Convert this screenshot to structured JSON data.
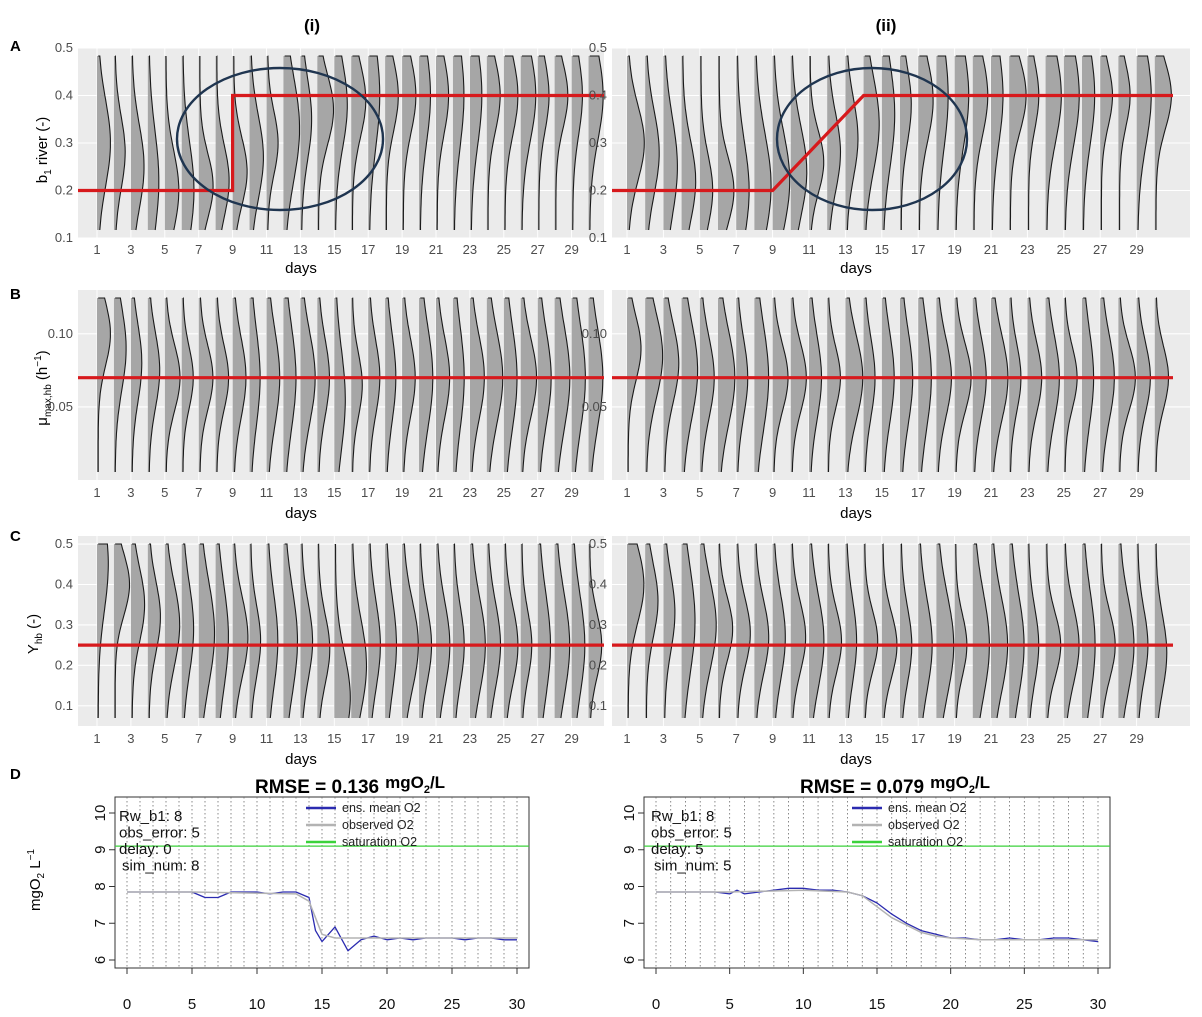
{
  "columns": [
    "(i)",
    "(ii)"
  ],
  "panels": {
    "A": {
      "letter": "A",
      "ylabel_main": "b",
      "ylabel_sub": "1",
      "ylabel_rest": " river (-)",
      "xlabel": "days",
      "yticks": [
        "0.1",
        "0.2",
        "0.3",
        "0.4",
        "0.5"
      ],
      "xticks": [
        "1",
        "3",
        "5",
        "7",
        "9",
        "11",
        "13",
        "15",
        "17",
        "19",
        "21",
        "23",
        "25",
        "27",
        "29"
      ]
    },
    "B": {
      "letter": "B",
      "ylabel_main": "μ",
      "ylabel_sub": "max,hb",
      "ylabel_rest": " (h",
      "ylabel_sup": "−1",
      "ylabel_end": ")",
      "xlabel": "days",
      "yticks": [
        "0.05",
        "0.10"
      ],
      "xticks": [
        "1",
        "3",
        "5",
        "7",
        "9",
        "11",
        "13",
        "15",
        "17",
        "19",
        "21",
        "23",
        "25",
        "27",
        "29"
      ]
    },
    "C": {
      "letter": "C",
      "ylabel_main": "Y",
      "ylabel_sub": "hb",
      "ylabel_rest": " (-)",
      "xlabel": "days",
      "yticks": [
        "0.1",
        "0.2",
        "0.3",
        "0.4",
        "0.5"
      ],
      "xticks": [
        "1",
        "3",
        "5",
        "7",
        "9",
        "11",
        "13",
        "15",
        "17",
        "19",
        "21",
        "23",
        "25",
        "27",
        "29"
      ]
    },
    "D": {
      "letter": "D",
      "ylabel_main": "mgO",
      "ylabel_sub": "2",
      "ylabel_rest": " L",
      "ylabel_sup": "−1",
      "xticks": [
        "0",
        "5",
        "10",
        "15",
        "20",
        "25",
        "30"
      ],
      "yticks_left": [
        "6",
        "7",
        "8",
        "9",
        "10"
      ],
      "yticks_right": [
        "6",
        "7",
        "8",
        "9",
        "10"
      ],
      "legend": [
        "ens. mean O2",
        "observed O2",
        "saturation O2"
      ],
      "left": {
        "rmse_label": "RMSE = 0.136",
        "unit_main": "mgO",
        "unit_sub": "2",
        "unit_rest": "/L",
        "params": [
          "Rw_b1: 8",
          "obs_error: 5",
          "delay: 0",
          "sim_num: 8"
        ]
      },
      "right": {
        "rmse_label": "RMSE = 0.079",
        "unit_main": "mgO",
        "unit_sub": "2",
        "unit_rest": "/L",
        "params": [
          "Rw_b1: 8",
          "obs_error: 5",
          "delay: 5",
          "sim_num: 5"
        ]
      }
    }
  },
  "colors": {
    "panel_bg": "#ebebeb",
    "grid": "#ffffff",
    "violin_fill": "#a6a6a6",
    "violin_line": "#1a1a1a",
    "truth_line": "#d7191c",
    "circle": "#1f3550",
    "ens_mean": "#2b2bb0",
    "observed": "#b3b3b3",
    "saturation": "#3bd23b"
  },
  "chart_data": [
    {
      "type": "violin",
      "panel": "A",
      "column": "(i)",
      "x": [
        1,
        2,
        3,
        4,
        5,
        6,
        7,
        8,
        9,
        10,
        11,
        12,
        13,
        14,
        15,
        16,
        17,
        18,
        19,
        20,
        21,
        22,
        23,
        24,
        25,
        26,
        27,
        28,
        29,
        30
      ],
      "ylim": [
        0.1,
        0.5
      ],
      "ensemble_mode": [
        0.3,
        0.28,
        0.25,
        0.22,
        0.2,
        0.2,
        0.21,
        0.22,
        0.24,
        0.27,
        0.3,
        0.33,
        0.35,
        0.37,
        0.38,
        0.39,
        0.4,
        0.4,
        0.4,
        0.4,
        0.4,
        0.4,
        0.4,
        0.4,
        0.4,
        0.4,
        0.4,
        0.4,
        0.4,
        0.4
      ],
      "truth": {
        "name": "true b1",
        "x": [
          0,
          9,
          9,
          31
        ],
        "y": [
          0.2,
          0.2,
          0.4,
          0.4
        ]
      }
    },
    {
      "type": "violin",
      "panel": "A",
      "column": "(ii)",
      "x": [
        1,
        2,
        3,
        4,
        5,
        6,
        7,
        8,
        9,
        10,
        11,
        12,
        13,
        14,
        15,
        16,
        17,
        18,
        19,
        20,
        21,
        22,
        23,
        24,
        25,
        26,
        27,
        28,
        29,
        30
      ],
      "ylim": [
        0.1,
        0.5
      ],
      "ensemble_mode": [
        0.3,
        0.28,
        0.25,
        0.22,
        0.2,
        0.2,
        0.2,
        0.21,
        0.22,
        0.24,
        0.26,
        0.28,
        0.31,
        0.34,
        0.36,
        0.38,
        0.39,
        0.4,
        0.4,
        0.4,
        0.4,
        0.4,
        0.4,
        0.4,
        0.4,
        0.4,
        0.4,
        0.4,
        0.4,
        0.4
      ],
      "truth": {
        "name": "true b1",
        "x": [
          0,
          9,
          14,
          31
        ],
        "y": [
          0.2,
          0.2,
          0.4,
          0.4
        ]
      }
    },
    {
      "type": "violin",
      "panel": "B",
      "column": "(i)",
      "x": [
        1,
        2,
        3,
        4,
        5,
        6,
        7,
        8,
        9,
        10,
        11,
        12,
        13,
        14,
        15,
        16,
        17,
        18,
        19,
        20,
        21,
        22,
        23,
        24,
        25,
        26,
        27,
        28,
        29,
        30
      ],
      "ylim": [
        0.0,
        0.13
      ],
      "ensemble_mode": [
        0.1,
        0.09,
        0.08,
        0.075,
        0.07,
        0.07,
        0.07,
        0.07,
        0.07,
        0.07,
        0.07,
        0.07,
        0.07,
        0.07,
        0.055,
        0.065,
        0.07,
        0.07,
        0.07,
        0.07,
        0.07,
        0.07,
        0.07,
        0.07,
        0.07,
        0.07,
        0.07,
        0.07,
        0.07,
        0.07
      ],
      "truth": {
        "name": "true mu",
        "x": [
          0,
          31
        ],
        "y": [
          0.07,
          0.07
        ]
      }
    },
    {
      "type": "violin",
      "panel": "B",
      "column": "(ii)",
      "x": [
        1,
        2,
        3,
        4,
        5,
        6,
        7,
        8,
        9,
        10,
        11,
        12,
        13,
        14,
        15,
        16,
        17,
        18,
        19,
        20,
        21,
        22,
        23,
        24,
        25,
        26,
        27,
        28,
        29,
        30
      ],
      "ylim": [
        0.0,
        0.13
      ],
      "ensemble_mode": [
        0.09,
        0.085,
        0.08,
        0.075,
        0.07,
        0.07,
        0.07,
        0.07,
        0.07,
        0.07,
        0.07,
        0.07,
        0.07,
        0.07,
        0.07,
        0.07,
        0.07,
        0.07,
        0.07,
        0.07,
        0.07,
        0.07,
        0.07,
        0.07,
        0.07,
        0.07,
        0.07,
        0.07,
        0.07,
        0.07
      ],
      "truth": {
        "name": "true mu",
        "x": [
          0,
          31
        ],
        "y": [
          0.07,
          0.07
        ]
      }
    },
    {
      "type": "violin",
      "panel": "C",
      "column": "(i)",
      "x": [
        1,
        2,
        3,
        4,
        5,
        6,
        7,
        8,
        9,
        10,
        11,
        12,
        13,
        14,
        15,
        16,
        17,
        18,
        19,
        20,
        21,
        22,
        23,
        24,
        25,
        26,
        27,
        28,
        29,
        30
      ],
      "ylim": [
        0.05,
        0.52
      ],
      "ensemble_mode": [
        0.45,
        0.4,
        0.35,
        0.32,
        0.3,
        0.29,
        0.28,
        0.27,
        0.27,
        0.26,
        0.26,
        0.26,
        0.26,
        0.24,
        0.12,
        0.2,
        0.25,
        0.25,
        0.25,
        0.25,
        0.25,
        0.25,
        0.25,
        0.25,
        0.25,
        0.25,
        0.25,
        0.25,
        0.25,
        0.25
      ],
      "truth": {
        "name": "true Y",
        "x": [
          0,
          31
        ],
        "y": [
          0.25,
          0.25
        ]
      }
    },
    {
      "type": "violin",
      "panel": "C",
      "column": "(ii)",
      "x": [
        1,
        2,
        3,
        4,
        5,
        6,
        7,
        8,
        9,
        10,
        11,
        12,
        13,
        14,
        15,
        16,
        17,
        18,
        19,
        20,
        21,
        22,
        23,
        24,
        25,
        26,
        27,
        28,
        29,
        30
      ],
      "ylim": [
        0.05,
        0.52
      ],
      "ensemble_mode": [
        0.4,
        0.36,
        0.33,
        0.31,
        0.3,
        0.29,
        0.28,
        0.27,
        0.27,
        0.27,
        0.26,
        0.26,
        0.26,
        0.26,
        0.25,
        0.25,
        0.25,
        0.25,
        0.25,
        0.25,
        0.25,
        0.25,
        0.25,
        0.25,
        0.25,
        0.25,
        0.25,
        0.25,
        0.25,
        0.23
      ],
      "truth": {
        "name": "true Y",
        "x": [
          0,
          31
        ],
        "y": [
          0.25,
          0.25
        ]
      }
    },
    {
      "type": "line",
      "panel": "D",
      "column": "(i)",
      "xlim": [
        0,
        30
      ],
      "ylim": [
        6,
        10
      ],
      "series": [
        {
          "name": "ens. mean O2",
          "x": [
            0,
            1,
            2,
            3,
            4,
            5,
            6,
            7,
            8,
            9,
            10,
            11,
            12,
            13,
            14,
            14.5,
            15,
            16,
            17,
            18,
            19,
            20,
            21,
            22,
            23,
            24,
            25,
            26,
            27,
            28,
            29,
            30
          ],
          "y": [
            7.85,
            7.85,
            7.85,
            7.85,
            7.85,
            7.85,
            7.7,
            7.7,
            7.85,
            7.85,
            7.85,
            7.8,
            7.85,
            7.85,
            7.7,
            6.8,
            6.5,
            6.9,
            6.25,
            6.55,
            6.65,
            6.55,
            6.6,
            6.55,
            6.6,
            6.6,
            6.6,
            6.55,
            6.6,
            6.6,
            6.55,
            6.55
          ]
        },
        {
          "name": "observed O2",
          "x": [
            0,
            5,
            13,
            14,
            15,
            16,
            20,
            30
          ],
          "y": [
            7.85,
            7.85,
            7.8,
            7.6,
            6.7,
            6.6,
            6.6,
            6.6
          ]
        },
        {
          "name": "saturation O2",
          "x": [
            0,
            30
          ],
          "y": [
            9.1,
            9.1
          ]
        }
      ]
    },
    {
      "type": "line",
      "panel": "D",
      "column": "(ii)",
      "xlim": [
        0,
        30
      ],
      "ylim": [
        6,
        10
      ],
      "series": [
        {
          "name": "ens. mean O2",
          "x": [
            0,
            1,
            2,
            3,
            4,
            5,
            5.5,
            6,
            7,
            8,
            9,
            10,
            11,
            12,
            13,
            14,
            15,
            16,
            17,
            18,
            19,
            20,
            21,
            22,
            23,
            24,
            25,
            26,
            27,
            28,
            29,
            30
          ],
          "y": [
            7.85,
            7.85,
            7.85,
            7.85,
            7.85,
            7.8,
            7.9,
            7.8,
            7.85,
            7.9,
            7.95,
            7.95,
            7.9,
            7.9,
            7.85,
            7.75,
            7.55,
            7.25,
            7.0,
            6.8,
            6.7,
            6.6,
            6.6,
            6.55,
            6.55,
            6.6,
            6.55,
            6.55,
            6.6,
            6.6,
            6.55,
            6.5
          ]
        },
        {
          "name": "observed O2",
          "x": [
            0,
            5,
            10,
            13,
            14,
            15,
            16,
            17,
            18,
            19,
            20,
            22,
            30
          ],
          "y": [
            7.85,
            7.85,
            7.9,
            7.85,
            7.75,
            7.45,
            7.15,
            6.95,
            6.75,
            6.65,
            6.6,
            6.55,
            6.55
          ]
        },
        {
          "name": "saturation O2",
          "x": [
            0,
            30
          ],
          "y": [
            9.1,
            9.1
          ]
        }
      ]
    }
  ]
}
